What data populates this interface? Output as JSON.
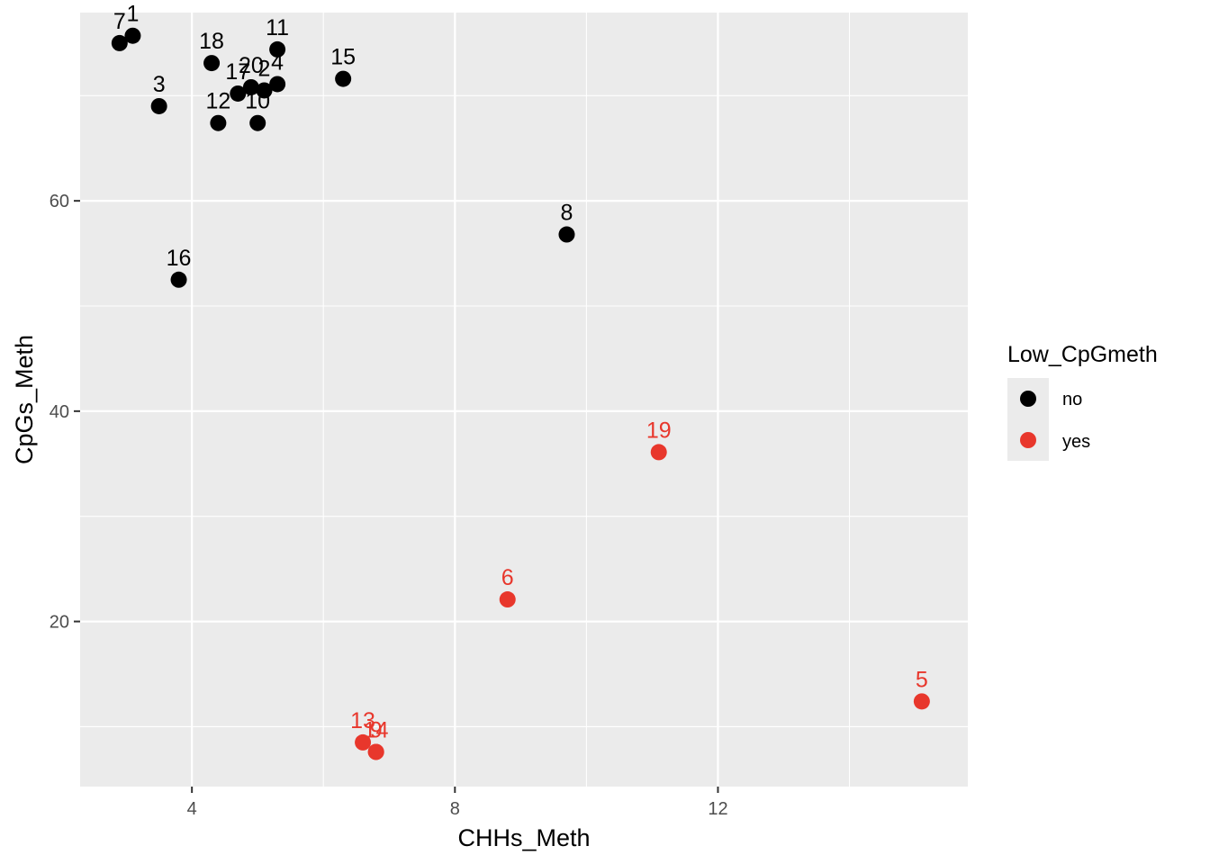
{
  "chart_data": {
    "type": "scatter",
    "xlabel": "CHHs_Meth",
    "ylabel": "CpGs_Meth",
    "xlim": [
      2.3,
      15.8
    ],
    "ylim": [
      4.3,
      77.9
    ],
    "x_ticks": [
      4,
      8,
      12
    ],
    "x_tick_labels": [
      "4",
      "8",
      "12"
    ],
    "x_minor_ticks": [
      6,
      10,
      14
    ],
    "y_ticks": [
      20,
      40,
      60
    ],
    "y_tick_labels": [
      "20",
      "40",
      "60"
    ],
    "y_minor_ticks": [
      10,
      30,
      50,
      70
    ],
    "grid": true,
    "legend": {
      "title": "Low_CpGmeth",
      "position": "right",
      "entries": [
        {
          "label": "no",
          "color": "#000000"
        },
        {
          "label": "yes",
          "color": "#e8372c"
        }
      ]
    },
    "colors": {
      "no": "#000000",
      "yes": "#e8372c"
    },
    "points": [
      {
        "label": "1",
        "x": 3.1,
        "y": 75.7,
        "group": "no"
      },
      {
        "label": "7",
        "x": 2.9,
        "y": 75.0,
        "group": "no"
      },
      {
        "label": "3",
        "x": 3.5,
        "y": 69.0,
        "group": "no"
      },
      {
        "label": "18",
        "x": 4.3,
        "y": 73.1,
        "group": "no"
      },
      {
        "label": "12",
        "x": 4.4,
        "y": 67.4,
        "group": "no"
      },
      {
        "label": "17",
        "x": 4.7,
        "y": 70.2,
        "group": "no"
      },
      {
        "label": "20",
        "x": 4.9,
        "y": 70.8,
        "group": "no"
      },
      {
        "label": "2",
        "x": 5.1,
        "y": 70.5,
        "group": "no"
      },
      {
        "label": "10",
        "x": 5.0,
        "y": 67.4,
        "group": "no"
      },
      {
        "label": "4",
        "x": 5.3,
        "y": 71.1,
        "group": "no"
      },
      {
        "label": "11",
        "x": 5.3,
        "y": 74.4,
        "group": "no"
      },
      {
        "label": "15",
        "x": 6.3,
        "y": 71.6,
        "group": "no"
      },
      {
        "label": "16",
        "x": 3.8,
        "y": 52.5,
        "group": "no"
      },
      {
        "label": "8",
        "x": 9.7,
        "y": 56.8,
        "group": "no"
      },
      {
        "label": "19",
        "x": 11.1,
        "y": 36.1,
        "group": "yes"
      },
      {
        "label": "6",
        "x": 8.8,
        "y": 22.1,
        "group": "yes"
      },
      {
        "label": "5",
        "x": 15.1,
        "y": 12.4,
        "group": "yes"
      },
      {
        "label": "13",
        "x": 6.6,
        "y": 8.5,
        "group": "yes"
      },
      {
        "label": "9",
        "x": 6.8,
        "y": 7.6,
        "group": "yes"
      },
      {
        "label": "14",
        "x": 6.8,
        "y": 7.6,
        "group": "yes"
      }
    ]
  }
}
